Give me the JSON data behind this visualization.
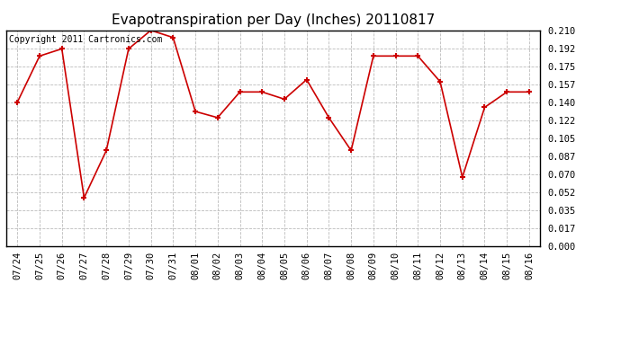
{
  "title": "Evapotranspiration per Day (Inches) 20110817",
  "copyright_text": "Copyright 2011 Cartronics.com",
  "x_labels": [
    "07/24",
    "07/25",
    "07/26",
    "07/27",
    "07/28",
    "07/29",
    "07/30",
    "07/31",
    "08/01",
    "08/02",
    "08/03",
    "08/04",
    "08/05",
    "08/06",
    "08/07",
    "08/08",
    "08/09",
    "08/10",
    "08/11",
    "08/12",
    "08/13",
    "08/14",
    "08/15",
    "08/16"
  ],
  "y_values": [
    0.14,
    0.185,
    0.192,
    0.047,
    0.093,
    0.192,
    0.21,
    0.203,
    0.131,
    0.125,
    0.15,
    0.15,
    0.143,
    0.162,
    0.125,
    0.093,
    0.185,
    0.185,
    0.185,
    0.16,
    0.067,
    0.135,
    0.15,
    0.15
  ],
  "y_ticks": [
    0.0,
    0.017,
    0.035,
    0.052,
    0.07,
    0.087,
    0.105,
    0.122,
    0.14,
    0.157,
    0.175,
    0.192,
    0.21
  ],
  "line_color": "#cc0000",
  "marker_color": "#cc0000",
  "bg_color": "#ffffff",
  "grid_color": "#bbbbbb",
  "title_fontsize": 11,
  "copyright_fontsize": 7,
  "tick_fontsize": 7.5
}
